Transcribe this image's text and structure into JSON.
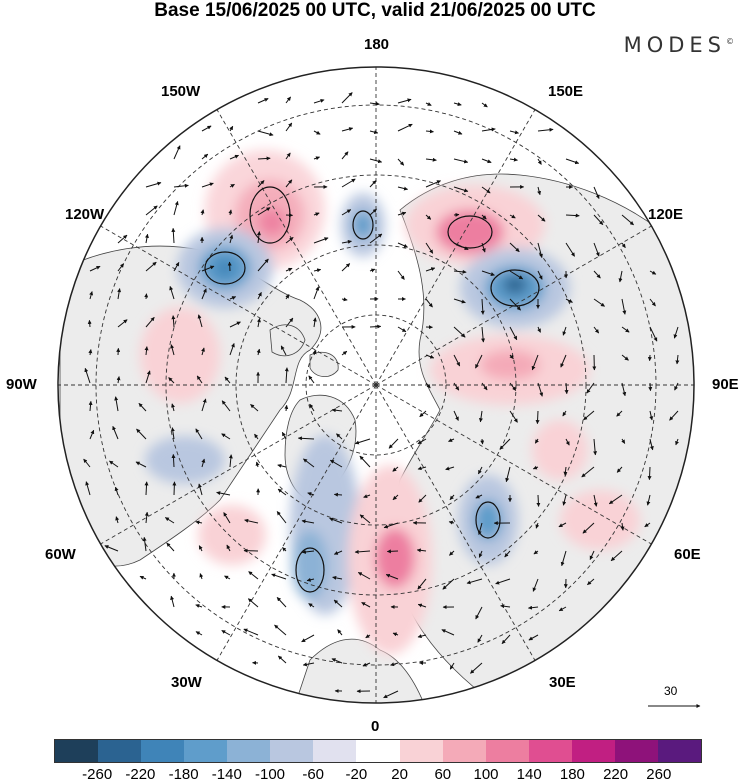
{
  "title": "Base 15/06/2025 00 UTC, valid 21/06/2025 00 UTC",
  "brand": "MODES",
  "brand_mark": "©",
  "longitude_labels": {
    "lon_180": "180",
    "lon_150w": "150W",
    "lon_150e": "150E",
    "lon_120w": "120W",
    "lon_120e": "120E",
    "lon_90w": "90W",
    "lon_90e": "90E",
    "lon_60w": "60W",
    "lon_60e": "60E",
    "lon_30w": "30W",
    "lon_30e": "30E",
    "lon_0": "0"
  },
  "reference_vector": "30",
  "colorbar": {
    "colors": [
      "#1e3f5a",
      "#2b6391",
      "#3f84b8",
      "#5f9dcb",
      "#8cb2d6",
      "#b9c7e0",
      "#e1e1ef",
      "#ffffff",
      "#f9d2d6",
      "#f4aab8",
      "#ed7ea0",
      "#e04e91",
      "#c11f82",
      "#8e127a",
      "#5a1a7e"
    ],
    "labels": [
      "-260",
      "-220",
      "-180",
      "-140",
      "-100",
      "-60",
      "-20",
      "20",
      "60",
      "100",
      "140",
      "180",
      "220",
      "260"
    ]
  },
  "colors": {
    "land": "#ececec",
    "grid": "#333333",
    "coast": "#333333"
  }
}
